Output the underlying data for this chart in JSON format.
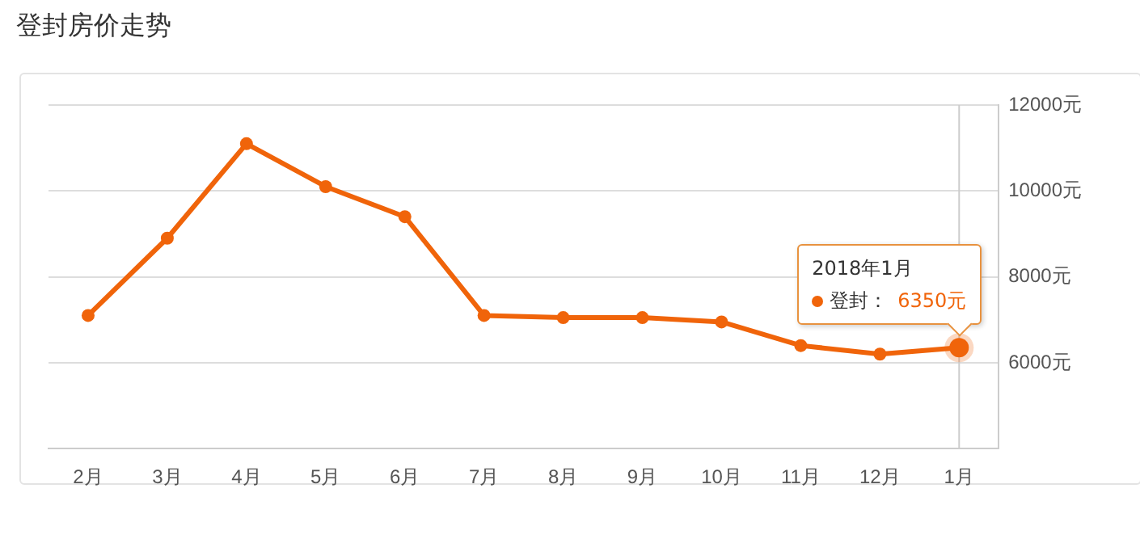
{
  "chart_data": {
    "type": "line",
    "title": "登封房价走势",
    "categories": [
      "2月",
      "3月",
      "4月",
      "5月",
      "6月",
      "7月",
      "8月",
      "9月",
      "10月",
      "11月",
      "12月",
      "1月"
    ],
    "series": [
      {
        "name": "登封：",
        "color": "#f0640a",
        "values": [
          7100,
          8900,
          11100,
          10100,
          9400,
          7100,
          7050,
          7050,
          6950,
          6400,
          6200,
          6350
        ],
        "value_labels": [
          null,
          null,
          null,
          null,
          null,
          null,
          null,
          null,
          null,
          null,
          null,
          "6350元"
        ]
      }
    ],
    "ref_lines": [
      {
        "axis": "x",
        "value": "1月",
        "color": "#cccccc"
      }
    ],
    "ylim": [
      4000,
      12000
    ],
    "yticks": [
      {
        "value": 4000,
        "label": null
      },
      {
        "value": 6000,
        "label": "6000元"
      },
      {
        "value": 8000,
        "label": "8000元"
      },
      {
        "value": 10000,
        "label": "10000元"
      },
      {
        "value": 12000,
        "label": "12000元"
      }
    ],
    "grid": "y",
    "legend": "right",
    "legend_title": "2018年1月",
    "marker": "circle",
    "line_style": "solid"
  }
}
